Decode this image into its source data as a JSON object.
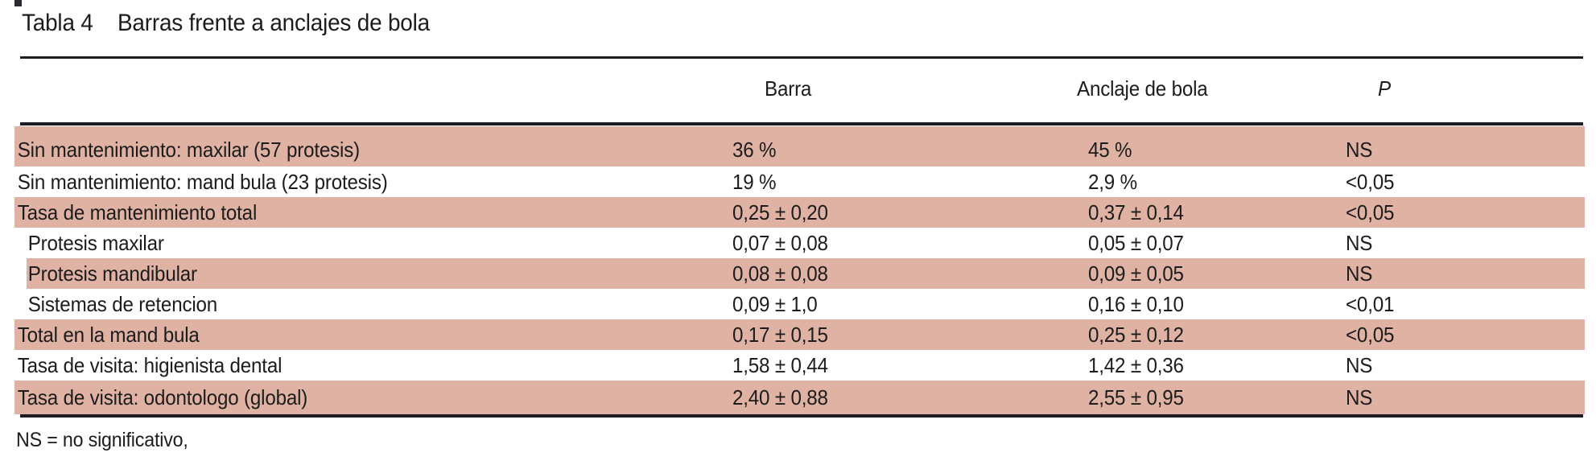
{
  "title": {
    "label": "Tabla 4",
    "text": "Barras frente a anclajes de bola"
  },
  "table": {
    "columns": {
      "barra": "Barra",
      "bola": "Anclaje de bola",
      "p": "P"
    },
    "rows": [
      {
        "label": "Sin mantenimiento: maxilar (57 protesis)",
        "barra": "36 %",
        "bola": "45 %",
        "p": "NS"
      },
      {
        "label": "Sin mantenimiento: mand bula (23 protesis)",
        "barra": "19 %",
        "bola": "2,9 %",
        "p": "<0,05"
      },
      {
        "label": "Tasa de mantenimiento total",
        "barra": "0,25 ± 0,20",
        "bola": "0,37 ± 0,14",
        "p": "<0,05"
      },
      {
        "label": "Protesis maxilar",
        "barra": "0,07 ± 0,08",
        "bola": "0,05 ± 0,07",
        "p": "NS"
      },
      {
        "label": "Protesis mandibular",
        "barra": "0,08 ± 0,08",
        "bola": "0,09 ± 0,05",
        "p": "NS"
      },
      {
        "label": "Sistemas de retencion",
        "barra": "0,09 ± 1,0",
        "bola": "0,16 ± 0,10",
        "p": "<0,01"
      },
      {
        "label": "Total en la mand bula",
        "barra": "0,17 ± 0,15",
        "bola": "0,25 ± 0,12",
        "p": "<0,05"
      },
      {
        "label": "Tasa de visita: higienista dental",
        "barra": "1,58 ± 0,44",
        "bola": "1,42 ± 0,36",
        "p": "NS"
      },
      {
        "label": "Tasa de visita: odontologo (global)",
        "barra": "2,40 ± 0,88",
        "bola": "2,55 ± 0,95",
        "p": "NS"
      }
    ]
  },
  "footnote": "NS = no significativo,",
  "colors": {
    "row-shade": "#dfb2a3",
    "rule": "#1d1d21",
    "text": "#1c1c1c",
    "bg": "#ffffff"
  }
}
